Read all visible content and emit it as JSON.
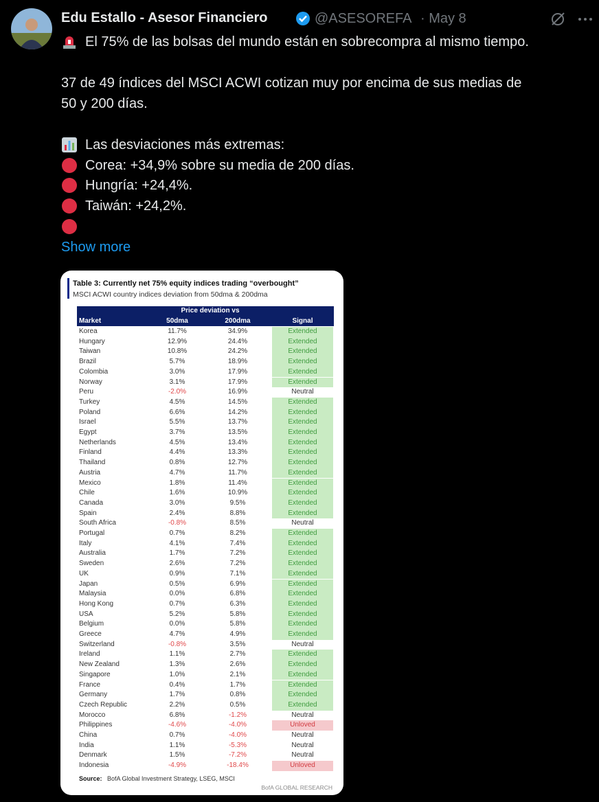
{
  "post": {
    "author": "Edu Estallo - Asesor Financiero",
    "handle": "@ASESOREFA",
    "date": "· May 8",
    "lines": [
      "El 75% de las bolsas del mundo están en sobrecompra al mismo tiempo.",
      "37 de 49 índices del MSCI ACWI cotizan muy por encima de sus medias de",
      "50 y 200 días.",
      "Las desviaciones más extremas:",
      "Corea: +34,9% sobre su media de 200 días.",
      "Hungría: +24,4%.",
      "Taiwán: +24,2%."
    ],
    "show_more": "Show more"
  },
  "table": {
    "title": "Table 3: Currently net 75% equity indices trading “overbought”",
    "subtitle": "MSCI ACWI country indices deviation from 50dma & 200dma",
    "group_header": "Price deviation vs",
    "columns": [
      "Market",
      "50dma",
      "200dma",
      "Signal"
    ],
    "rows": [
      [
        "Korea",
        "11.7%",
        "34.9%",
        "Extended"
      ],
      [
        "Hungary",
        "12.9%",
        "24.4%",
        "Extended"
      ],
      [
        "Taiwan",
        "10.8%",
        "24.2%",
        "Extended"
      ],
      [
        "Brazil",
        "5.7%",
        "18.9%",
        "Extended"
      ],
      [
        "Colombia",
        "3.0%",
        "17.9%",
        "Extended"
      ],
      [
        "Norway",
        "3.1%",
        "17.9%",
        "Extended"
      ],
      [
        "Peru",
        "-2.0%",
        "16.9%",
        "Neutral"
      ],
      [
        "Turkey",
        "4.5%",
        "14.5%",
        "Extended"
      ],
      [
        "Poland",
        "6.6%",
        "14.2%",
        "Extended"
      ],
      [
        "Israel",
        "5.5%",
        "13.7%",
        "Extended"
      ],
      [
        "Egypt",
        "3.7%",
        "13.5%",
        "Extended"
      ],
      [
        "Netherlands",
        "4.5%",
        "13.4%",
        "Extended"
      ],
      [
        "Finland",
        "4.4%",
        "13.3%",
        "Extended"
      ],
      [
        "Thailand",
        "0.8%",
        "12.7%",
        "Extended"
      ],
      [
        "Austria",
        "4.7%",
        "11.7%",
        "Extended"
      ],
      [
        "Mexico",
        "1.8%",
        "11.4%",
        "Extended"
      ],
      [
        "Chile",
        "1.6%",
        "10.9%",
        "Extended"
      ],
      [
        "Canada",
        "3.0%",
        "9.5%",
        "Extended"
      ],
      [
        "Spain",
        "2.4%",
        "8.8%",
        "Extended"
      ],
      [
        "South Africa",
        "-0.8%",
        "8.5%",
        "Neutral"
      ],
      [
        "Portugal",
        "0.7%",
        "8.2%",
        "Extended"
      ],
      [
        "Italy",
        "4.1%",
        "7.4%",
        "Extended"
      ],
      [
        "Australia",
        "1.7%",
        "7.2%",
        "Extended"
      ],
      [
        "Sweden",
        "2.6%",
        "7.2%",
        "Extended"
      ],
      [
        "UK",
        "0.9%",
        "7.1%",
        "Extended"
      ],
      [
        "Japan",
        "0.5%",
        "6.9%",
        "Extended"
      ],
      [
        "Malaysia",
        "0.0%",
        "6.8%",
        "Extended"
      ],
      [
        "Hong Kong",
        "0.7%",
        "6.3%",
        "Extended"
      ],
      [
        "USA",
        "5.2%",
        "5.8%",
        "Extended"
      ],
      [
        "Belgium",
        "0.0%",
        "5.8%",
        "Extended"
      ],
      [
        "Greece",
        "4.7%",
        "4.9%",
        "Extended"
      ],
      [
        "Switzerland",
        "-0.8%",
        "3.5%",
        "Neutral"
      ],
      [
        "Ireland",
        "1.1%",
        "2.7%",
        "Extended"
      ],
      [
        "New Zealand",
        "1.3%",
        "2.6%",
        "Extended"
      ],
      [
        "Singapore",
        "1.0%",
        "2.1%",
        "Extended"
      ],
      [
        "France",
        "0.4%",
        "1.7%",
        "Extended"
      ],
      [
        "Germany",
        "1.7%",
        "0.8%",
        "Extended"
      ],
      [
        "Czech Republic",
        "2.2%",
        "0.5%",
        "Extended"
      ],
      [
        "Morocco",
        "6.8%",
        "-1.2%",
        "Neutral"
      ],
      [
        "Philippines",
        "-4.6%",
        "-4.0%",
        "Unloved"
      ],
      [
        "China",
        "0.7%",
        "-4.0%",
        "Neutral"
      ],
      [
        "India",
        "1.1%",
        "-5.3%",
        "Neutral"
      ],
      [
        "Denmark",
        "1.5%",
        "-7.2%",
        "Neutral"
      ],
      [
        "Indonesia",
        "-4.9%",
        "-18.4%",
        "Unloved"
      ]
    ],
    "source_label": "Source:",
    "source": "BofA Global Investment Strategy, LSEG, MSCI",
    "brand": "BofA GLOBAL RESEARCH"
  }
}
